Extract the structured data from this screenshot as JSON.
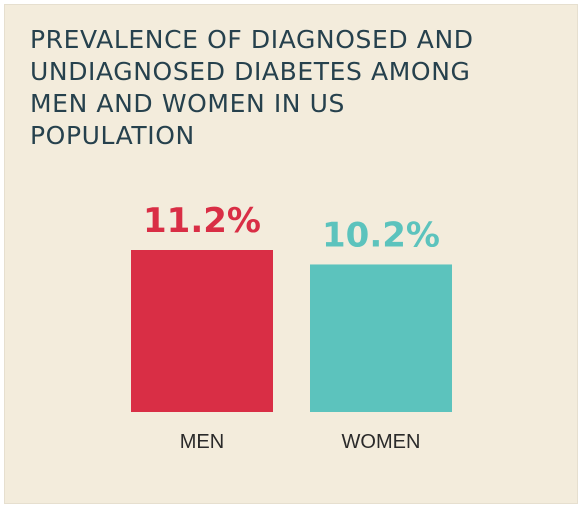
{
  "page": {
    "background": "#f3ecdc"
  },
  "chart_data": {
    "type": "bar",
    "title": "PREVALENCE OF DIAGNOSED AND\nUNDIAGNOSED DIABETES AMONG\nMEN AND WOMEN IN US\nPOPULATION",
    "categories": [
      "MEN",
      "WOMEN"
    ],
    "values": [
      11.2,
      10.2
    ],
    "value_labels": [
      "11.2%",
      "10.2%"
    ],
    "bar_colors": [
      "#d92e45",
      "#5cc3bd"
    ],
    "value_label_colors": [
      "#d92e45",
      "#5cc3bd"
    ],
    "xlabel": "",
    "ylabel": "",
    "ylim": [
      0,
      11.2
    ],
    "grid": false,
    "legend": "none"
  }
}
